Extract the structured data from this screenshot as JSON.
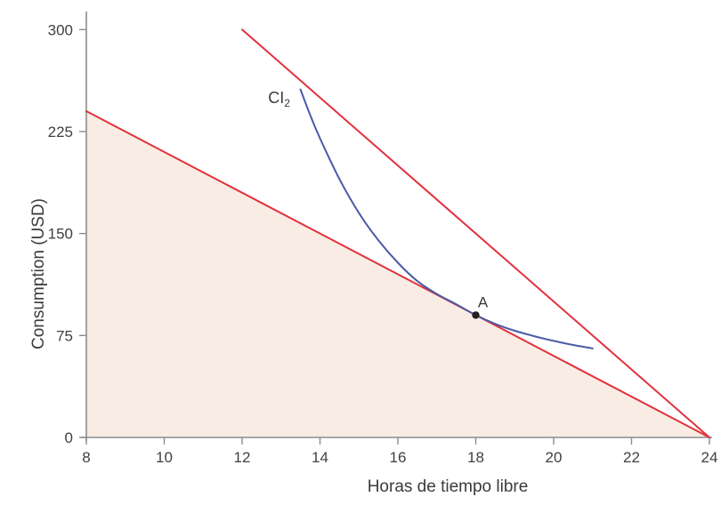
{
  "figure": {
    "xlabel": "Horas de tiempo libre",
    "ylabel": "Consumption (USD)"
  },
  "chart_data": {
    "type": "line",
    "title": "",
    "xlabel": "Horas de tiempo libre",
    "ylabel": "Consumption (USD)",
    "xlim": [
      8,
      24
    ],
    "ylim": [
      0,
      313
    ],
    "xticks": [
      8,
      10,
      12,
      14,
      16,
      18,
      20,
      22,
      24
    ],
    "yticks": [
      0,
      75,
      150,
      225,
      300
    ],
    "grid": false,
    "legend_position": "none",
    "shaded_region": {
      "name": "feasible-set",
      "color": "#f8ece5",
      "points": [
        [
          8,
          240
        ],
        [
          24,
          0
        ],
        [
          8,
          0
        ]
      ]
    },
    "series": [
      {
        "name": "budget-constraint-steep",
        "type": "straight",
        "color": "#e2323c",
        "width": 2,
        "points": [
          [
            12,
            300
          ],
          [
            24,
            0
          ]
        ]
      },
      {
        "name": "budget-constraint-flat",
        "type": "straight",
        "color": "#e2323c",
        "width": 2,
        "points": [
          [
            8,
            240
          ],
          [
            24,
            0
          ]
        ]
      },
      {
        "name": "indifference-curve-ci2",
        "type": "smooth",
        "color": "#4a5ba6",
        "width": 2,
        "points": [
          [
            13.5,
            256
          ],
          [
            13.75,
            237
          ],
          [
            14,
            220
          ],
          [
            14.5,
            190
          ],
          [
            15,
            165
          ],
          [
            15.5,
            145
          ],
          [
            16,
            128.5
          ],
          [
            16.5,
            115
          ],
          [
            17,
            105.5
          ],
          [
            17.5,
            98
          ],
          [
            18,
            90
          ],
          [
            18.5,
            83.5
          ],
          [
            19,
            78.5
          ],
          [
            19.5,
            74.5
          ],
          [
            20,
            71
          ],
          [
            20.5,
            68
          ],
          [
            21,
            65.5
          ]
        ]
      }
    ],
    "points": [
      {
        "label": "A",
        "x": 18,
        "y": 90,
        "color": "#231f20",
        "radius": 4.2
      }
    ],
    "annotations": [
      {
        "text_base": "CI",
        "text_sub": "2",
        "x": 12.95,
        "y": 250,
        "color": "#3b3b3b"
      }
    ]
  },
  "colors": {
    "axis": "#8c8c8e",
    "tick_text": "#414042",
    "label_text": "#3b3b3b",
    "background": "#ffffff"
  }
}
